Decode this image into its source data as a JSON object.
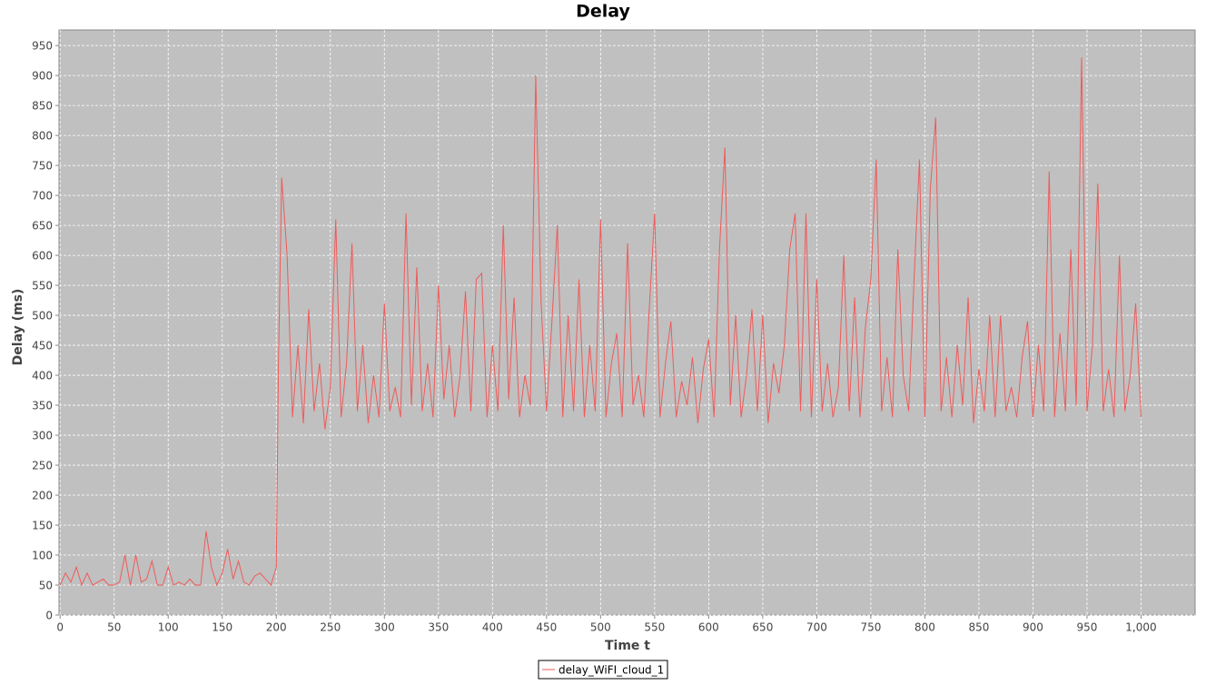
{
  "chart_data": {
    "type": "line",
    "title": "Delay",
    "x_label": "Time t",
    "y_label": "Delay (ms)",
    "xlim": [
      -1,
      1050
    ],
    "ylim": [
      0,
      976
    ],
    "xticks": [
      0,
      50,
      100,
      150,
      200,
      250,
      300,
      350,
      400,
      450,
      500,
      550,
      600,
      650,
      700,
      750,
      800,
      850,
      900,
      950,
      {
        "value": 1000,
        "label": "1,000"
      }
    ],
    "yticks": [
      0,
      50,
      100,
      150,
      200,
      250,
      300,
      350,
      400,
      450,
      500,
      550,
      600,
      650,
      700,
      750,
      800,
      850,
      900,
      950
    ],
    "grid": true,
    "legend": "bottom",
    "x": [
      0,
      5,
      10,
      15,
      20,
      25,
      30,
      35,
      40,
      45,
      50,
      55,
      60,
      65,
      70,
      75,
      80,
      85,
      90,
      95,
      100,
      105,
      110,
      115,
      120,
      125,
      130,
      135,
      140,
      145,
      150,
      155,
      160,
      165,
      170,
      175,
      180,
      185,
      190,
      195,
      200,
      202,
      205,
      210,
      215,
      220,
      225,
      230,
      235,
      240,
      245,
      250,
      255,
      260,
      265,
      270,
      275,
      280,
      285,
      290,
      295,
      300,
      305,
      310,
      315,
      320,
      325,
      330,
      335,
      340,
      345,
      350,
      355,
      360,
      365,
      370,
      375,
      380,
      385,
      390,
      395,
      400,
      405,
      410,
      415,
      420,
      425,
      430,
      435,
      440,
      445,
      450,
      455,
      460,
      465,
      470,
      475,
      480,
      485,
      490,
      495,
      500,
      505,
      510,
      515,
      520,
      525,
      530,
      535,
      540,
      545,
      550,
      555,
      560,
      565,
      570,
      575,
      580,
      585,
      590,
      595,
      600,
      605,
      610,
      615,
      620,
      625,
      630,
      635,
      640,
      645,
      650,
      655,
      660,
      665,
      670,
      675,
      680,
      685,
      690,
      695,
      700,
      705,
      710,
      715,
      720,
      725,
      730,
      735,
      740,
      745,
      750,
      755,
      760,
      765,
      770,
      775,
      780,
      785,
      790,
      795,
      800,
      805,
      810,
      815,
      820,
      825,
      830,
      835,
      840,
      845,
      850,
      855,
      860,
      865,
      870,
      875,
      880,
      885,
      890,
      895,
      900,
      905,
      910,
      915,
      920,
      925,
      930,
      935,
      940,
      945,
      950,
      955,
      960,
      965,
      970,
      975,
      980,
      985,
      990,
      995,
      1000
    ],
    "series": [
      {
        "name": "delay_WiFI_cloud_1",
        "color": "#f05a5a",
        "values": [
          50,
          70,
          55,
          80,
          50,
          70,
          50,
          55,
          60,
          50,
          50,
          55,
          100,
          50,
          100,
          55,
          60,
          90,
          50,
          50,
          80,
          50,
          55,
          50,
          60,
          50,
          50,
          140,
          80,
          50,
          70,
          110,
          60,
          90,
          55,
          50,
          65,
          70,
          60,
          50,
          80,
          420,
          730,
          600,
          330,
          450,
          320,
          510,
          340,
          420,
          310,
          380,
          660,
          330,
          420,
          620,
          340,
          450,
          320,
          400,
          330,
          520,
          340,
          380,
          330,
          670,
          350,
          580,
          340,
          420,
          330,
          550,
          360,
          450,
          330,
          400,
          540,
          340,
          560,
          570,
          330,
          450,
          340,
          650,
          360,
          530,
          330,
          400,
          350,
          900,
          520,
          340,
          490,
          650,
          330,
          500,
          340,
          560,
          330,
          450,
          340,
          660,
          330,
          420,
          470,
          330,
          620,
          350,
          400,
          330,
          510,
          670,
          330,
          420,
          490,
          330,
          390,
          350,
          430,
          320,
          410,
          460,
          330,
          610,
          780,
          350,
          500,
          330,
          400,
          510,
          340,
          500,
          320,
          420,
          370,
          450,
          610,
          670,
          340,
          670,
          330,
          560,
          340,
          420,
          330,
          380,
          600,
          340,
          530,
          330,
          480,
          560,
          760,
          340,
          430,
          330,
          610,
          400,
          340,
          560,
          760,
          330,
          710,
          830,
          340,
          430,
          330,
          450,
          350,
          530,
          320,
          410,
          340,
          500,
          330,
          500,
          340,
          380,
          330,
          430,
          490,
          330,
          450,
          340,
          740,
          330,
          470,
          340,
          610,
          350,
          930,
          340,
          450,
          720,
          340,
          410,
          330,
          600,
          340,
          400,
          520,
          330
        ]
      }
    ]
  }
}
